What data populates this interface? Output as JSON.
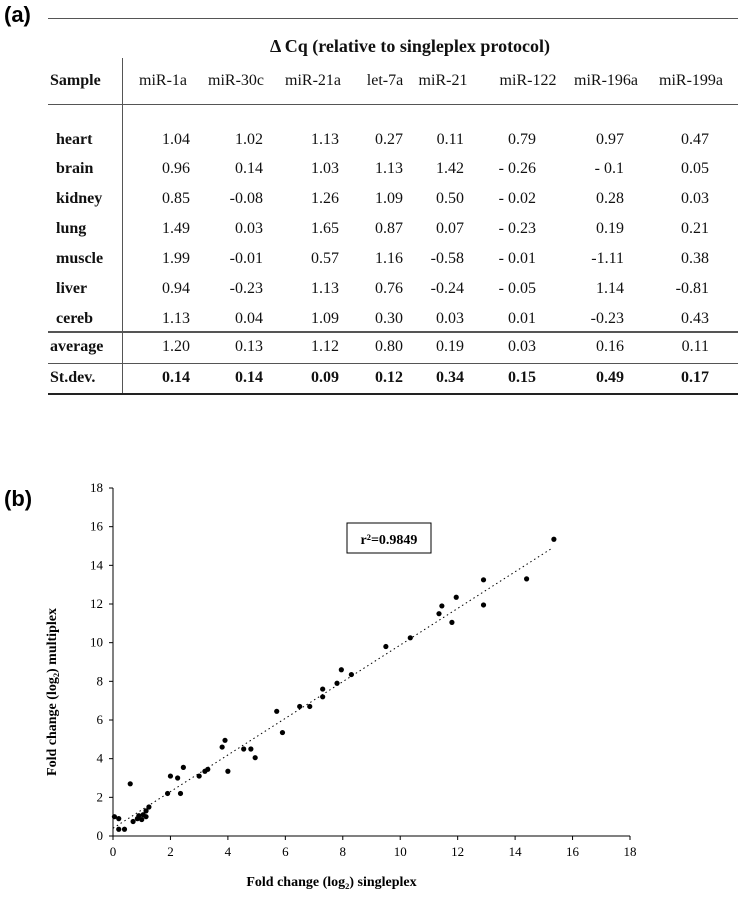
{
  "panel_labels": {
    "a": "(a)",
    "b": "(b)"
  },
  "table": {
    "title": "Δ Cq (relative to singleplex protocol)",
    "sample_header": "Sample",
    "columns": [
      "miR-1a",
      "miR-30c",
      "miR-21a",
      "let-7a",
      "miR-21",
      "miR-122",
      "miR-196a",
      "miR-199a"
    ],
    "rows": [
      {
        "sample": "heart",
        "values": [
          "1.04",
          "1.02",
          "1.13",
          "0.27",
          "0.11",
          "0.79",
          "0.97",
          "0.47"
        ]
      },
      {
        "sample": "brain",
        "values": [
          "0.96",
          "0.14",
          "1.03",
          "1.13",
          "1.42",
          "- 0.26",
          "- 0.1",
          "0.05"
        ]
      },
      {
        "sample": "kidney",
        "values": [
          "0.85",
          "-0.08",
          "1.26",
          "1.09",
          "0.50",
          "- 0.02",
          "0.28",
          "0.03"
        ]
      },
      {
        "sample": "lung",
        "values": [
          "1.49",
          "0.03",
          "1.65",
          "0.87",
          "0.07",
          "- 0.23",
          "0.19",
          "0.21"
        ]
      },
      {
        "sample": "muscle",
        "values": [
          "1.99",
          "-0.01",
          "0.57",
          "1.16",
          "-0.58",
          "- 0.01",
          "-1.11",
          "0.38"
        ]
      },
      {
        "sample": "liver",
        "values": [
          "0.94",
          "-0.23",
          "1.13",
          "0.76",
          "-0.24",
          "- 0.05",
          "1.14",
          "-0.81"
        ]
      },
      {
        "sample": "cereb",
        "values": [
          "1.13",
          "0.04",
          "1.09",
          "0.30",
          "0.03",
          "0.01",
          "-0.23",
          "0.43"
        ]
      }
    ],
    "average": {
      "label": "average",
      "values": [
        "1.20",
        "0.13",
        "1.12",
        "0.80",
        "0.19",
        "0.03",
        "0.16",
        "0.11"
      ]
    },
    "stdev": {
      "label": "St.dev.",
      "values": [
        "0.14",
        "0.14",
        "0.09",
        "0.12",
        "0.34",
        "0.15",
        "0.49",
        "0.17"
      ]
    }
  },
  "chart_data": {
    "type": "scatter",
    "xlabel": "Fold change (log₂) singleplex",
    "ylabel": "Fold change (log₂) multiplex",
    "xlim": [
      0,
      18
    ],
    "ylim": [
      0,
      18
    ],
    "xticks": [
      0,
      2,
      4,
      6,
      8,
      10,
      12,
      14,
      16,
      18
    ],
    "yticks": [
      0,
      2,
      4,
      6,
      8,
      10,
      12,
      14,
      16,
      18
    ],
    "annotation": "r²=0.9849",
    "trendline": {
      "style": "dotted",
      "from": [
        0,
        0.4
      ],
      "to": [
        15.3,
        14.9
      ]
    },
    "points": [
      [
        0.05,
        1.0
      ],
      [
        0.2,
        0.9
      ],
      [
        0.2,
        0.35
      ],
      [
        0.4,
        0.35
      ],
      [
        0.6,
        2.7
      ],
      [
        0.7,
        0.75
      ],
      [
        0.85,
        0.9
      ],
      [
        0.9,
        1.05
      ],
      [
        1.0,
        0.85
      ],
      [
        1.05,
        1.1
      ],
      [
        1.15,
        1.0
      ],
      [
        1.15,
        1.3
      ],
      [
        1.25,
        1.5
      ],
      [
        1.9,
        2.2
      ],
      [
        2.0,
        3.1
      ],
      [
        2.25,
        3.0
      ],
      [
        2.35,
        2.2
      ],
      [
        2.45,
        3.55
      ],
      [
        3.0,
        3.1
      ],
      [
        3.2,
        3.35
      ],
      [
        3.3,
        3.45
      ],
      [
        3.8,
        4.6
      ],
      [
        3.9,
        4.95
      ],
      [
        4.0,
        3.35
      ],
      [
        4.55,
        4.5
      ],
      [
        4.8,
        4.5
      ],
      [
        4.95,
        4.05
      ],
      [
        5.7,
        6.45
      ],
      [
        5.9,
        5.35
      ],
      [
        6.5,
        6.7
      ],
      [
        6.85,
        6.7
      ],
      [
        7.3,
        7.6
      ],
      [
        7.3,
        7.2
      ],
      [
        7.8,
        7.9
      ],
      [
        7.95,
        8.6
      ],
      [
        8.3,
        8.35
      ],
      [
        9.5,
        9.8
      ],
      [
        10.35,
        10.25
      ],
      [
        11.35,
        11.5
      ],
      [
        11.45,
        11.9
      ],
      [
        11.8,
        11.05
      ],
      [
        11.95,
        12.35
      ],
      [
        12.9,
        13.25
      ],
      [
        12.9,
        11.95
      ],
      [
        14.4,
        13.3
      ],
      [
        15.35,
        15.35
      ]
    ]
  }
}
